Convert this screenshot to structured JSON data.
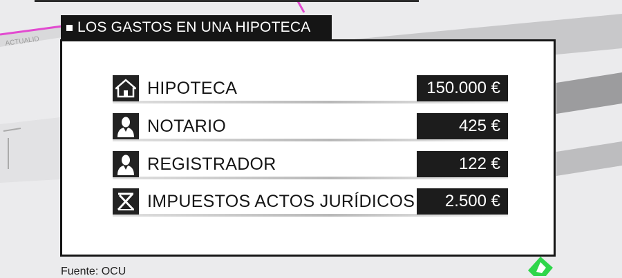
{
  "title": "LOS GASTOS EN UNA HIPOTECA",
  "rows": [
    {
      "icon": "house-icon",
      "label": "HIPOTECA",
      "value": "150.000 €"
    },
    {
      "icon": "person-icon",
      "label": "NOTARIO",
      "value": "425 €"
    },
    {
      "icon": "person-icon",
      "label": "REGISTRADOR",
      "value": "122 €"
    },
    {
      "icon": "tax-icon",
      "label": "IMPUESTOS ACTOS JURÍDICOS",
      "value": "2.500 €"
    }
  ],
  "source": "Fuente: OCU",
  "background_text": "ACTUALID",
  "colors": {
    "dark": "#151515",
    "accent_pink": "#e24ad0",
    "logo_green": "#2fd64a"
  }
}
